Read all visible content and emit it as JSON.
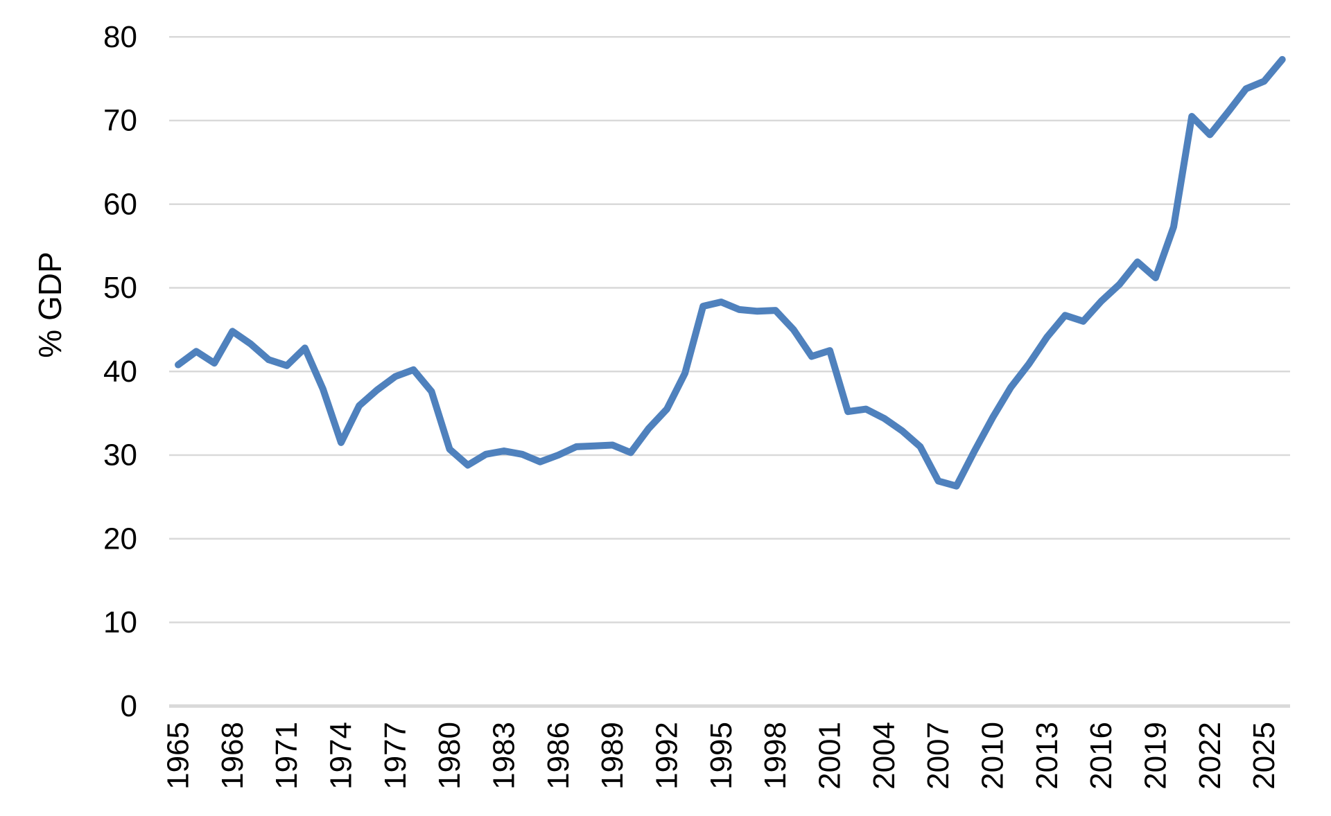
{
  "chart_data": {
    "type": "line",
    "title": "",
    "xlabel": "",
    "ylabel": "% GDP",
    "legend": "none",
    "grid": "horizontal",
    "ylim": [
      0,
      80
    ],
    "y_ticks": [
      0,
      10,
      20,
      30,
      40,
      50,
      60,
      70,
      80
    ],
    "x_tick_labels": [
      "1965",
      "1968",
      "1971",
      "1974",
      "1977",
      "1980",
      "1983",
      "1986",
      "1989",
      "1992",
      "1995",
      "1998",
      "2001",
      "2004",
      "2007",
      "2010",
      "2013",
      "2016",
      "2019",
      "2022",
      "2025"
    ],
    "x": [
      1965,
      1966,
      1967,
      1968,
      1969,
      1970,
      1971,
      1972,
      1973,
      1974,
      1975,
      1976,
      1977,
      1978,
      1979,
      1980,
      1981,
      1982,
      1983,
      1984,
      1985,
      1986,
      1987,
      1988,
      1989,
      1990,
      1991,
      1992,
      1993,
      1994,
      1995,
      1996,
      1997,
      1998,
      1999,
      2000,
      2001,
      2002,
      2003,
      2004,
      2005,
      2006,
      2007,
      2008,
      2009,
      2010,
      2011,
      2012,
      2013,
      2014,
      2015,
      2016,
      2017,
      2018,
      2019,
      2020,
      2021,
      2022,
      2023,
      2024,
      2025,
      2026
    ],
    "series": [
      {
        "name": "% GDP",
        "values": [
          40.8,
          42.4,
          41.0,
          44.8,
          43.3,
          41.4,
          40.7,
          42.8,
          37.9,
          31.5,
          35.9,
          37.8,
          39.4,
          40.2,
          37.6,
          30.7,
          28.8,
          30.1,
          30.5,
          30.1,
          29.2,
          30.0,
          31.0,
          31.1,
          31.2,
          30.3,
          33.2,
          35.5,
          39.8,
          47.8,
          48.3,
          47.4,
          47.2,
          47.3,
          45.0,
          41.8,
          42.5,
          35.2,
          35.5,
          34.4,
          32.9,
          31.0,
          26.9,
          26.3,
          30.5,
          34.5,
          38.1,
          40.9,
          44.1,
          46.7,
          46.0,
          48.4,
          50.4,
          53.1,
          51.2,
          57.3,
          70.5,
          68.3,
          71.0,
          73.8,
          74.7,
          77.3
        ]
      }
    ],
    "line_color": "#4F81BD",
    "gridline_color": "#D9D9D9",
    "axis_line_color": "#D9D9D9",
    "text_color": "#000000"
  }
}
